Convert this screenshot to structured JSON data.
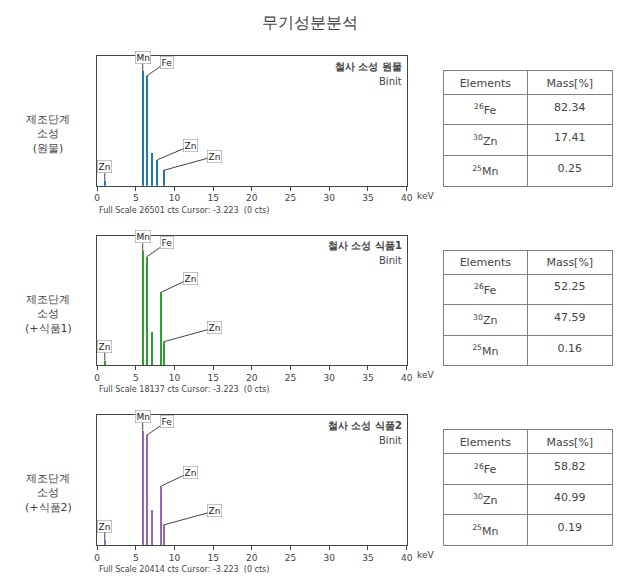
{
  "title": "무기성분분석",
  "chart_data": [
    {
      "type": "bar",
      "label": "제조단계\n소성\n(원물)",
      "title": "철사 소성 원물",
      "subtitle": "Binit",
      "xlabel": "keV",
      "caption": "Full Scale 26501 cts Cursor: -3.223  (0 cts)",
      "x": [
        5.9,
        6.4,
        7.05,
        7.8,
        8.6,
        1.0
      ],
      "values": [
        0.97,
        0.93,
        0.28,
        0.22,
        0.13,
        0.04
      ],
      "annotations": [
        {
          "x": 5.9,
          "y": 0.97,
          "text": "Mn"
        },
        {
          "x": 6.4,
          "y": 0.93,
          "text": "Fe"
        },
        {
          "x": 7.8,
          "y": 0.22,
          "text": "Zn"
        },
        {
          "x": 8.6,
          "y": 0.13,
          "text": "Zn"
        },
        {
          "x": 1.0,
          "y": 0.04,
          "text": "Zn"
        }
      ],
      "xlim": [
        0,
        40
      ],
      "xticks": [
        0,
        5,
        10,
        15,
        20,
        25,
        30,
        35,
        40
      ],
      "ylim": [
        0,
        1.1
      ],
      "grid": false,
      "tick_labels": "x",
      "table": {
        "header": [
          "Elements",
          "Mass[%]"
        ],
        "rows": [
          {
            "number": "26",
            "symbol": "Fe",
            "mass": "82.34"
          },
          {
            "number": "30",
            "symbol": "Zn",
            "mass": "17.41"
          },
          {
            "number": "25",
            "symbol": "Mn",
            "mass": "0.25"
          }
        ]
      }
    },
    {
      "type": "bar",
      "label": "제조단계\n소성\n(+식품1)",
      "title": "철사 소성 식품1",
      "subtitle": "Binit",
      "xlabel": "keV",
      "caption": "Full Scale 18137 cts Cursor: -3.223  (0 cts)",
      "x": [
        5.9,
        6.4,
        7.05,
        8.3,
        8.6,
        1.0
      ],
      "values": [
        0.97,
        0.92,
        0.28,
        0.62,
        0.2,
        0.04
      ],
      "annotations": [
        {
          "x": 5.9,
          "y": 0.97,
          "text": "Mn"
        },
        {
          "x": 6.4,
          "y": 0.92,
          "text": "Fe"
        },
        {
          "x": 8.3,
          "y": 0.62,
          "text": "Zn"
        },
        {
          "x": 8.6,
          "y": 0.2,
          "text": "Zn"
        },
        {
          "x": 1.0,
          "y": 0.04,
          "text": "Zn"
        }
      ],
      "xlim": [
        0,
        40
      ],
      "xticks": [
        0,
        5,
        10,
        15,
        20,
        25,
        30,
        35,
        40
      ],
      "ylim": [
        0,
        1.1
      ],
      "grid": false,
      "tick_labels": "x",
      "table": {
        "header": [
          "Elements",
          "Mass[%]"
        ],
        "rows": [
          {
            "number": "26",
            "symbol": "Fe",
            "mass": "52.25"
          },
          {
            "number": "30",
            "symbol": "Zn",
            "mass": "47.59"
          },
          {
            "number": "25",
            "symbol": "Mn",
            "mass": "0.16"
          }
        ]
      }
    },
    {
      "type": "bar",
      "label": "제조단계\n소성\n(+식품2)",
      "title": "철사 소성 식품2",
      "subtitle": "Binit",
      "xlabel": "keV",
      "caption": "Full Scale 20414 cts Cursor: -3.223  (0 cts)",
      "x": [
        5.9,
        6.4,
        7.05,
        8.3,
        8.6,
        1.0
      ],
      "values": [
        0.97,
        0.93,
        0.3,
        0.5,
        0.17,
        0.04
      ],
      "annotations": [
        {
          "x": 5.9,
          "y": 0.97,
          "text": "Mn"
        },
        {
          "x": 6.4,
          "y": 0.93,
          "text": "Fe"
        },
        {
          "x": 8.3,
          "y": 0.5,
          "text": "Zn"
        },
        {
          "x": 8.6,
          "y": 0.17,
          "text": "Zn"
        },
        {
          "x": 1.0,
          "y": 0.04,
          "text": "Zn"
        }
      ],
      "xlim": [
        0,
        40
      ],
      "xticks": [
        0,
        5,
        10,
        15,
        20,
        25,
        30,
        35,
        40
      ],
      "ylim": [
        0,
        1.1
      ],
      "grid": false,
      "tick_labels": "x",
      "table": {
        "header": [
          "Elements",
          "Mass[%]"
        ],
        "rows": [
          {
            "number": "26",
            "symbol": "Fe",
            "mass": "58.82"
          },
          {
            "number": "30",
            "symbol": "Zn",
            "mass": "40.99"
          },
          {
            "number": "25",
            "symbol": "Mn",
            "mass": "0.19"
          }
        ]
      }
    }
  ]
}
